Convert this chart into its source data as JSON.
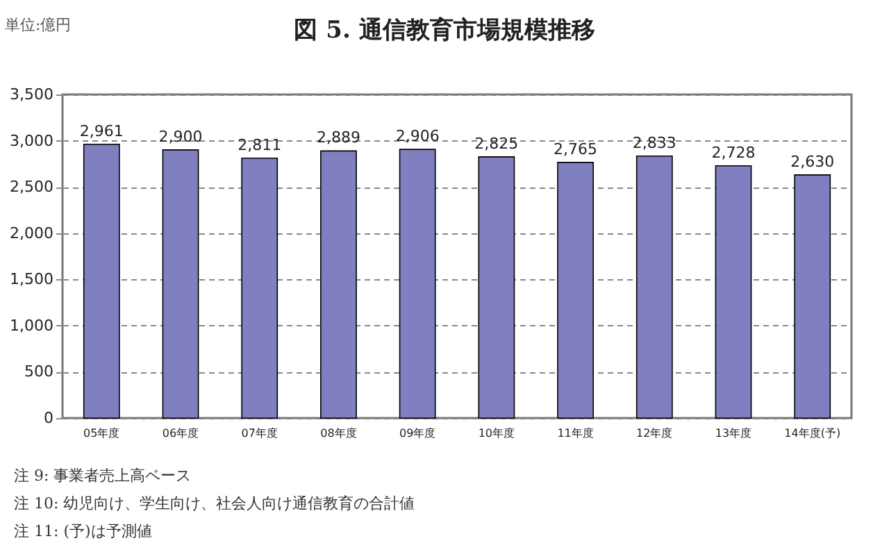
{
  "chart_data": {
    "type": "bar",
    "title": "図 5. 通信教育市場規模推移",
    "ylabel": "単位:億円",
    "categories": [
      "05年度",
      "06年度",
      "07年度",
      "08年度",
      "09年度",
      "10年度",
      "11年度",
      "12年度",
      "13年度",
      "14年度(予)"
    ],
    "values": [
      2961,
      2900,
      2811,
      2889,
      2906,
      2825,
      2765,
      2833,
      2728,
      2630
    ],
    "value_labels": [
      "2,961",
      "2,900",
      "2,811",
      "2,889",
      "2,906",
      "2,825",
      "2,765",
      "2,833",
      "2,728",
      "2,630"
    ],
    "color": "#8080c0",
    "ylim": [
      0,
      3500
    ],
    "yticks": [
      0,
      {
        "value": 500,
        "label": "500"
      },
      {
        "value": 1000,
        "label": "1,000"
      },
      {
        "value": 1500,
        "label": "1,500"
      },
      {
        "value": 2000,
        "label": "2,000"
      },
      {
        "value": 2500,
        "label": "2,500"
      },
      {
        "value": 3000,
        "label": "3,000"
      },
      {
        "value": 3500,
        "label": "3,500"
      }
    ],
    "grid": "y",
    "annotations": [
      "注 9: 事業者売上高ベース",
      "注 10: 幼児向け、学生向け、社会人向け通信教育の合計値",
      "注 11: (予)は予測値"
    ]
  }
}
